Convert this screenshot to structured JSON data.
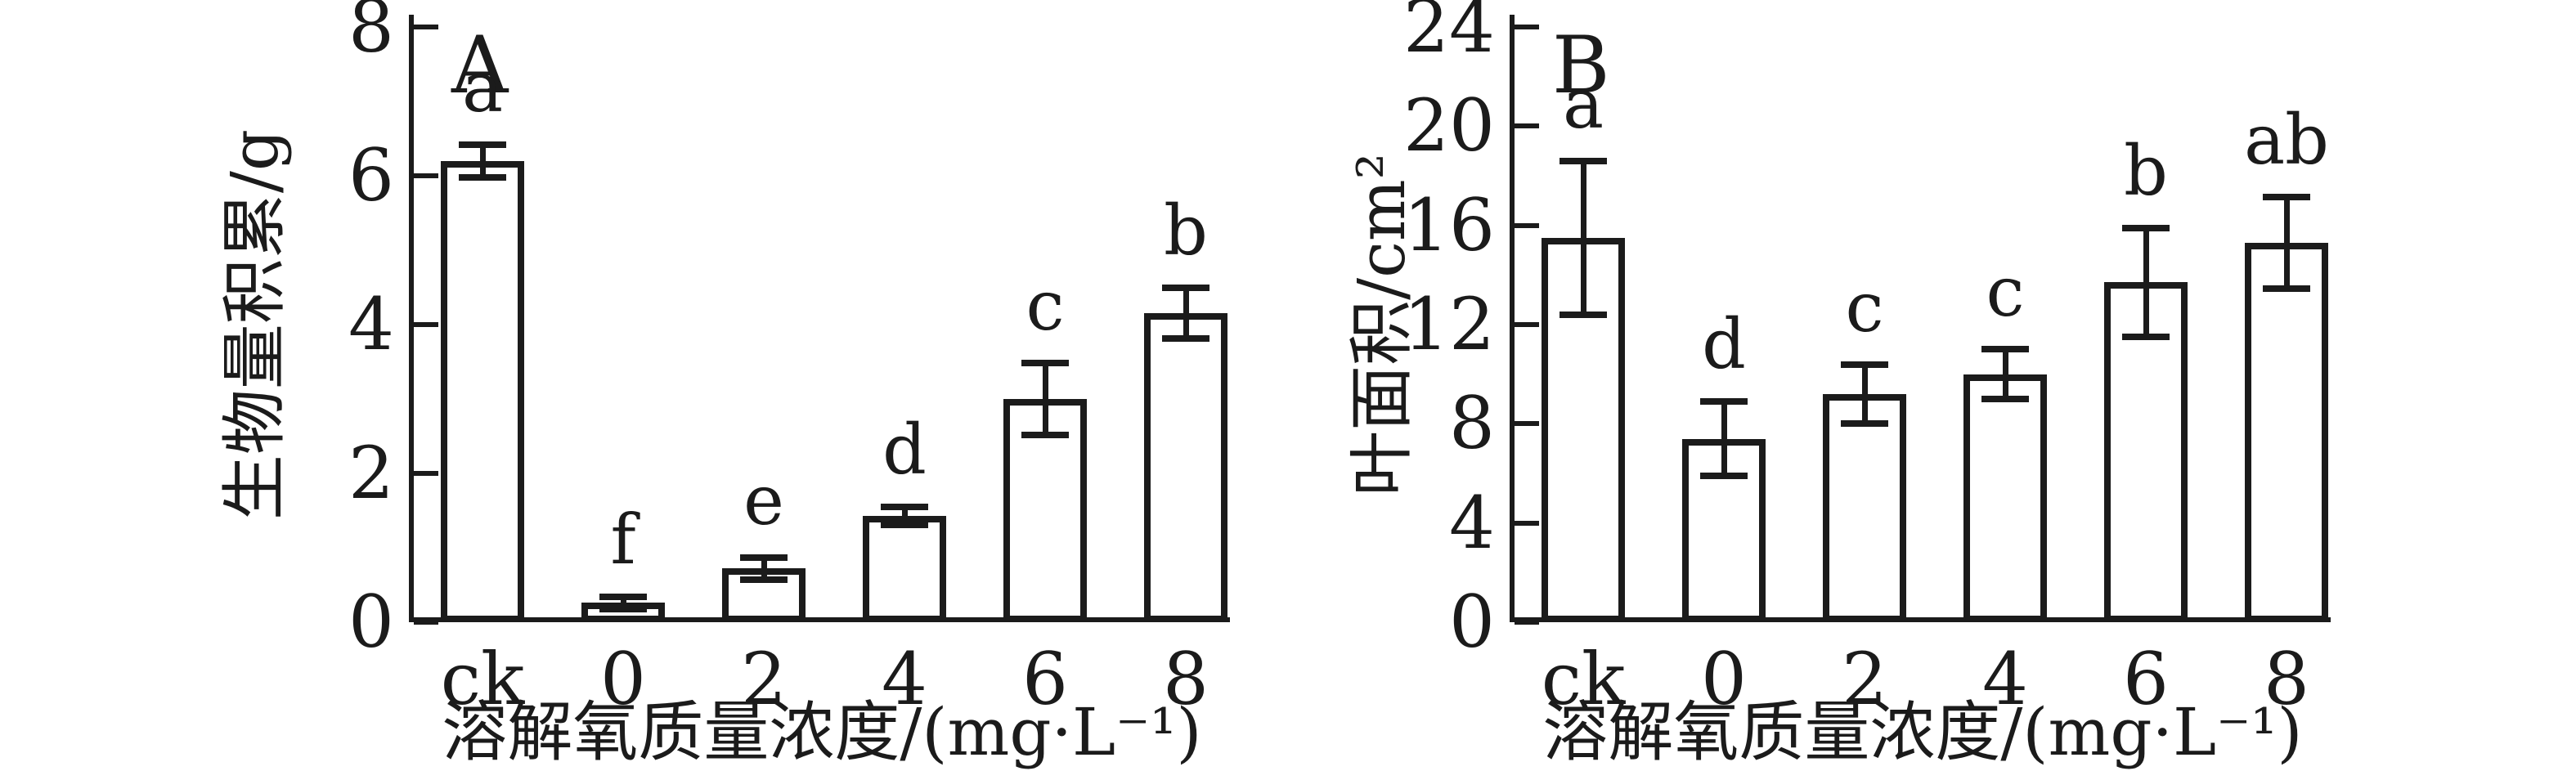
{
  "figure": {
    "background": "#ffffff",
    "ink_color": "#1b1b1b",
    "bar_fill": "#ffffff",
    "description_style": "two-panel black-and-white scientific bar chart with error bars and significance letters"
  },
  "chart_data": [
    {
      "type": "bar",
      "panel_label": "A",
      "categories": [
        "ck",
        "0",
        "2",
        "4",
        "6",
        "8"
      ],
      "values": [
        6.2,
        0.26,
        0.72,
        1.43,
        3.0,
        4.15
      ],
      "errors": [
        0.22,
        0.08,
        0.15,
        0.12,
        0.48,
        0.34
      ],
      "sig_letters": [
        "a",
        "f",
        "e",
        "d",
        "c",
        "b"
      ],
      "xlabel": "溶解氧质量浓度/(mg·L⁻¹)",
      "ylabel": "生物量积累/g",
      "ylim": [
        0,
        8
      ],
      "yticks": [
        0,
        2,
        4,
        6,
        8
      ],
      "grid": "off",
      "legend": "none",
      "bar_fill": "#ffffff",
      "bar_edge": "#1b1b1b"
    },
    {
      "type": "bar",
      "panel_label": "B",
      "categories": [
        "ck",
        "0",
        "2",
        "4",
        "6",
        "8"
      ],
      "values": [
        15.5,
        7.4,
        9.2,
        10.0,
        13.7,
        15.3
      ],
      "errors": [
        3.1,
        1.5,
        1.2,
        1.0,
        2.2,
        1.85
      ],
      "sig_letters": [
        "a",
        "d",
        "c",
        "c",
        "b",
        "ab"
      ],
      "xlabel": "溶解氧质量浓度/(mg·L⁻¹)",
      "ylabel": "叶面积/cm²",
      "ylim": [
        0,
        24
      ],
      "yticks": [
        0,
        4,
        8,
        12,
        16,
        20,
        24
      ],
      "grid": "off",
      "legend": "none",
      "bar_fill": "#ffffff",
      "bar_edge": "#1b1b1b"
    }
  ]
}
